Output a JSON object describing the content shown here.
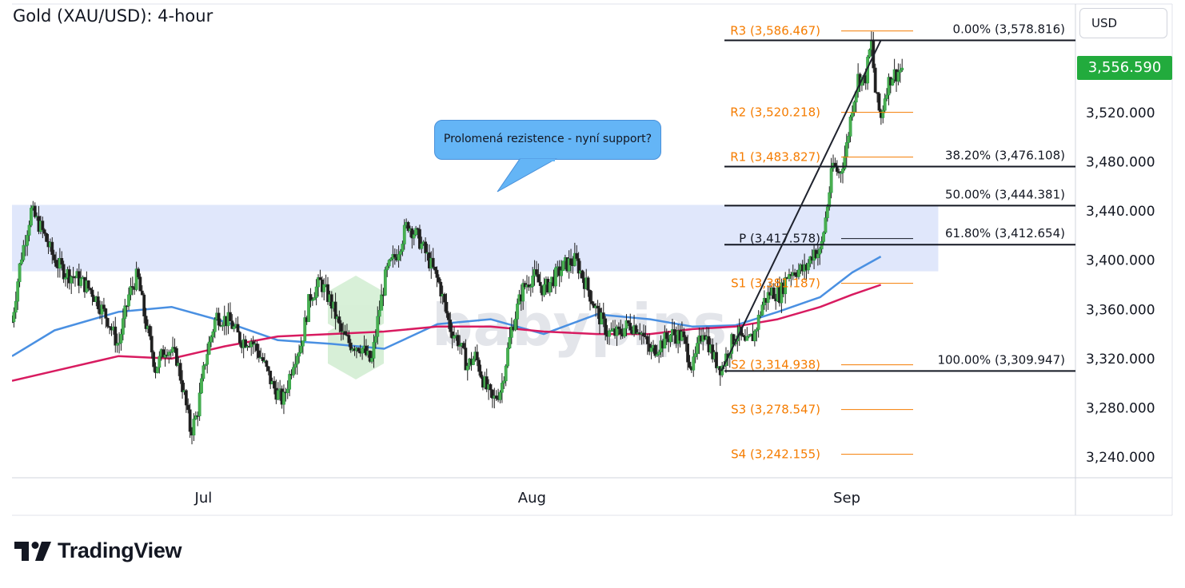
{
  "header": {
    "title": "Gold (XAU/USD): 4-hour"
  },
  "toolbar": {
    "currency_label": "USD"
  },
  "last_price": {
    "label": "3,556.590",
    "value": 3556.59,
    "color": "#22ab3d"
  },
  "annotation": {
    "text": "Prolomená rezistence - nyní support?",
    "color": "#64b5f6"
  },
  "watermark": {
    "text": "babypips"
  },
  "branding": {
    "text": "TradingView",
    "icon": "tradingview-logo-icon"
  },
  "chart_data": {
    "type": "candlestick",
    "instrument": "XAU/USD",
    "timeframe": "4-hour",
    "x_tick_labels": [
      "Jul",
      "Aug",
      "Sep"
    ],
    "y_axis": {
      "range": [
        3220,
        3600
      ],
      "ticks": [
        3240,
        3280,
        3320,
        3360,
        3400,
        3440,
        3480,
        3520
      ],
      "tick_labels": [
        "3,240.000",
        "3,280.000",
        "3,320.000",
        "3,360.000",
        "3,400.000",
        "3,440.000",
        "3,480.000",
        "3,520.000"
      ],
      "position": "right"
    },
    "x_range": [
      0,
      1000
    ],
    "month_starts": {
      "Jul": 180,
      "Aug": 489,
      "Sep": 785
    },
    "resistance_zone": {
      "low": 3391,
      "high": 3445,
      "x_start": 0,
      "x_end": 871,
      "color": "#dde4fb"
    },
    "pivot_levels": [
      {
        "label": "R3 (3,586.467)",
        "value": 3586.467
      },
      {
        "label": "R2 (3,520.218)",
        "value": 3520.218
      },
      {
        "label": "R1 (3,483.827)",
        "value": 3483.827
      },
      {
        "label": "P (3,417.578)",
        "value": 3417.578
      },
      {
        "label": "S1 (3,381.187)",
        "value": 3381.187
      },
      {
        "label": "S2 (3,314.938)",
        "value": 3314.938
      },
      {
        "label": "S3 (3,278.547)",
        "value": 3278.547
      },
      {
        "label": "S4 (3,242.155)",
        "value": 3242.155
      }
    ],
    "pivot_color": "#f57c00",
    "fibonacci_levels": [
      {
        "label": "0.00% (3,578.816)",
        "value": 3578.816
      },
      {
        "label": "38.20% (3,476.108)",
        "value": 3476.108
      },
      {
        "label": "50.00% (3,444.381)",
        "value": 3444.381
      },
      {
        "label": "61.80% (3,412.654)",
        "value": 3412.654
      },
      {
        "label": "100.00% (3,309.947)",
        "value": 3309.947
      }
    ],
    "trend_line": {
      "from": {
        "x": 667,
        "y": 3309.947
      },
      "to": {
        "x": 817,
        "y": 3578.816
      }
    },
    "moving_averages": [
      {
        "color": "#4a90e2",
        "x": [
          0,
          40,
          100,
          150,
          200,
          250,
          300,
          350,
          400,
          450,
          500,
          550,
          600,
          640,
          680,
          720,
          760,
          790,
          817
        ],
        "y": [
          3322,
          3343,
          3358,
          3362,
          3350,
          3335,
          3332,
          3328,
          3348,
          3352,
          3340,
          3356,
          3352,
          3346,
          3347,
          3358,
          3370,
          3390,
          3403
        ]
      },
      {
        "color": "#d81b60",
        "x": [
          0,
          40,
          100,
          150,
          200,
          250,
          300,
          350,
          400,
          450,
          500,
          550,
          600,
          640,
          680,
          720,
          760,
          790,
          817
        ],
        "y": [
          3302,
          3310,
          3322,
          3320,
          3330,
          3338,
          3340,
          3342,
          3346,
          3346,
          3342,
          3340,
          3340,
          3344,
          3346,
          3352,
          3362,
          3372,
          3380
        ]
      }
    ],
    "close_path": {
      "x": [
        0,
        8,
        18,
        28,
        40,
        50,
        62,
        75,
        90,
        100,
        110,
        118,
        125,
        135,
        145,
        155,
        162,
        168,
        174,
        182,
        192,
        205,
        215,
        225,
        235,
        245,
        255,
        265,
        272,
        280,
        290,
        300,
        310,
        318,
        328,
        338,
        345,
        352,
        362,
        372,
        382,
        392,
        402,
        412,
        420,
        428,
        436,
        444,
        452,
        460,
        470,
        480,
        490,
        500,
        510,
        520,
        530,
        540,
        550,
        560,
        570,
        580,
        590,
        600,
        610,
        620,
        630,
        640,
        650,
        660,
        667,
        675,
        682,
        690,
        698,
        706,
        714,
        722,
        730,
        738,
        746,
        754,
        760,
        766,
        772,
        778,
        784,
        790,
        796,
        802,
        808,
        812,
        817,
        822,
        827,
        832,
        838
      ],
      "y": [
        3350,
        3400,
        3440,
        3425,
        3400,
        3390,
        3385,
        3375,
        3352,
        3330,
        3372,
        3388,
        3352,
        3312,
        3330,
        3320,
        3290,
        3260,
        3275,
        3320,
        3355,
        3350,
        3335,
        3335,
        3320,
        3298,
        3285,
        3320,
        3332,
        3370,
        3382,
        3366,
        3340,
        3332,
        3330,
        3316,
        3358,
        3390,
        3406,
        3430,
        3418,
        3400,
        3380,
        3345,
        3334,
        3314,
        3322,
        3300,
        3285,
        3296,
        3345,
        3376,
        3388,
        3376,
        3386,
        3396,
        3400,
        3380,
        3358,
        3341,
        3340,
        3348,
        3345,
        3325,
        3332,
        3340,
        3338,
        3312,
        3345,
        3320,
        3312,
        3330,
        3342,
        3330,
        3340,
        3365,
        3375,
        3372,
        3390,
        3392,
        3392,
        3408,
        3405,
        3440,
        3478,
        3470,
        3488,
        3525,
        3550,
        3545,
        3578,
        3535,
        3515,
        3540,
        3550,
        3552,
        3557
      ]
    },
    "legend": "none",
    "grid": false
  }
}
